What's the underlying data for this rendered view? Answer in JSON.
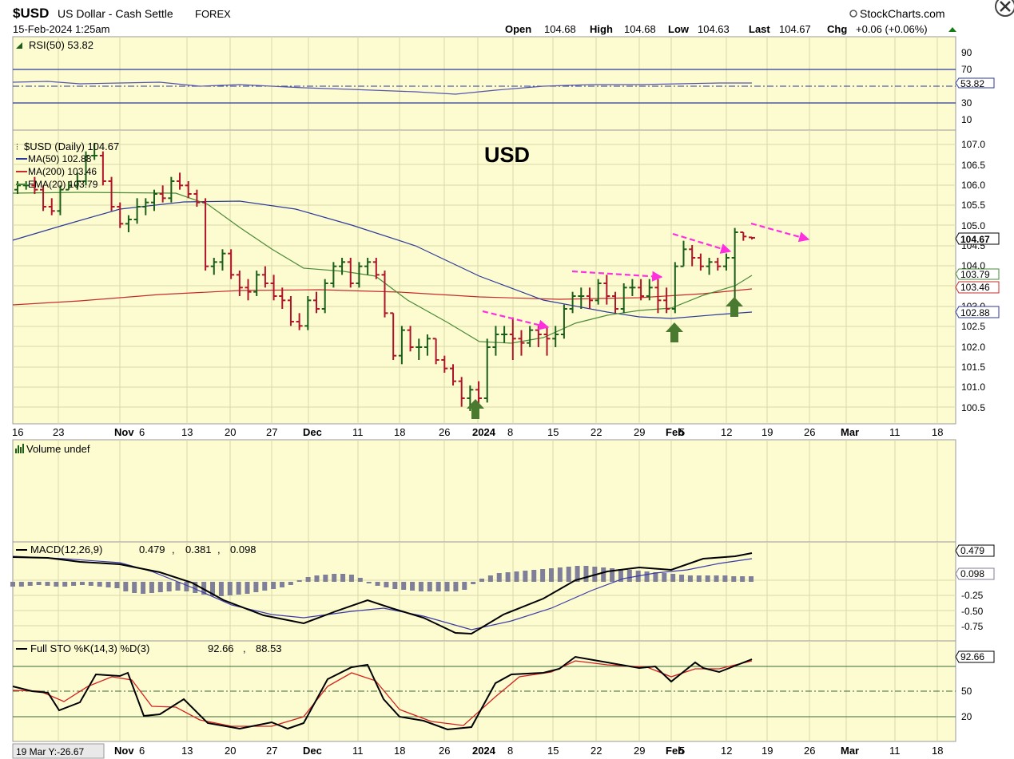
{
  "header": {
    "symbol": "$USD",
    "description": "US Dollar - Cash Settle",
    "exchange": "FOREX",
    "brand": "StockCharts.com",
    "datetime": "15-Feb-2024 1:25am",
    "open_label": "Open",
    "open": "104.68",
    "high_label": "High",
    "high": "104.68",
    "low_label": "Low",
    "low": "104.63",
    "last_label": "Last",
    "last": "104.67",
    "chg_label": "Chg",
    "chg": "+0.06 (+0.06%)"
  },
  "colors": {
    "background": "#fdfbd0",
    "gridline": "#d7d9a8",
    "frame": "#9a9a9a",
    "bar_up": "#1a5e1a",
    "bar_down": "#b0142a",
    "ma50": "#2b3a9a",
    "ma200": "#c82b2b",
    "ema20": "#4a8a3a",
    "annotation_arrow": "#ff2fe0",
    "annotation_text": "#9b59f0",
    "signal_arrow": "#4a7a30",
    "macd_hist": "#7f7f9a",
    "rsi_line": "#5555b0"
  },
  "rsi_panel": {
    "label": "RSI(50) 53.82",
    "current": "53.82",
    "ticks": [
      "90",
      "70",
      "30",
      "10"
    ]
  },
  "price_panel": {
    "legend_symbol": "$USD (Daily) 104.67",
    "legend_ma50": "MA(50) 102.88",
    "legend_ma200": "MA(200) 103.46",
    "legend_ema20": "EMA(20) 103.79",
    "annotation": "USD",
    "tag_last": "104.67",
    "tag_ema20": "103.79",
    "tag_ma200": "103.46",
    "tag_ma50": "102.88",
    "ticks": [
      "107.0",
      "106.5",
      "106.0",
      "105.5",
      "105.0",
      "104.5",
      "104.0",
      "103.0",
      "102.5",
      "102.0",
      "101.5",
      "101.0",
      "100.5"
    ]
  },
  "date_axis": {
    "labels": [
      "16",
      "23",
      "Nov",
      "6",
      "13",
      "20",
      "27",
      "Dec",
      "11",
      "18",
      "26",
      "2024",
      "8",
      "15",
      "22",
      "29",
      "Feb",
      "5",
      "12",
      "19",
      "26",
      "Mar",
      "11",
      "18"
    ],
    "bold": [
      false,
      false,
      true,
      false,
      false,
      false,
      false,
      true,
      false,
      false,
      false,
      true,
      false,
      false,
      false,
      false,
      true,
      false,
      false,
      false,
      false,
      true,
      false,
      false
    ]
  },
  "volume_panel": {
    "label": "Volume undef"
  },
  "macd_panel": {
    "label": "MACD(12,26,9)",
    "macd": "0.479",
    "signal": "0.381",
    "hist": "0.098",
    "tag_macd": "0.479",
    "tag_hist": "0.098",
    "ticks": [
      "-0.25",
      "-0.50",
      "-0.75"
    ]
  },
  "sto_panel": {
    "label": "Full STO %K(14,3) %D(3)",
    "k": "92.66",
    "d": "88.53",
    "tag_k": "92.66",
    "ticks": [
      "50",
      "20"
    ]
  },
  "crosshair_readout": "19 Mar Y:-26.67",
  "chart_data": {
    "type": "bar",
    "title": "$USD US Dollar - Cash Settle FOREX",
    "period": "Daily",
    "ylim": [
      100.3,
      107.2
    ],
    "x_axis": "dates (Oct 2023 – Mar 2024)",
    "ohlc_daily_approx": [
      [
        "2023-10-13",
        105.8,
        106.0,
        105.7,
        105.9
      ],
      [
        "2023-10-16",
        105.9,
        106.0,
        105.8,
        105.9
      ],
      [
        "2023-10-17",
        105.9,
        106.1,
        105.7,
        105.8
      ],
      [
        "2023-10-18",
        105.8,
        105.9,
        105.3,
        105.4
      ],
      [
        "2023-10-19",
        105.4,
        105.6,
        105.2,
        105.3
      ],
      [
        "2023-10-20",
        105.3,
        105.9,
        105.2,
        105.8
      ],
      [
        "2023-10-23",
        105.8,
        106.0,
        105.8,
        105.9
      ],
      [
        "2023-10-24",
        105.9,
        106.2,
        105.8,
        106.0
      ],
      [
        "2023-10-25",
        106.0,
        106.7,
        105.9,
        106.6
      ],
      [
        "2023-10-26",
        106.6,
        106.9,
        106.5,
        106.6
      ],
      [
        "2023-10-27",
        106.6,
        106.7,
        105.9,
        106.0
      ],
      [
        "2023-10-30",
        106.0,
        106.1,
        105.3,
        105.4
      ],
      [
        "2023-10-31",
        105.4,
        105.5,
        104.9,
        105.0
      ],
      [
        "2023-11-01",
        105.0,
        105.2,
        104.8,
        105.1
      ],
      [
        "2023-11-02",
        105.1,
        105.6,
        105.0,
        105.4
      ],
      [
        "2023-11-03",
        105.4,
        105.6,
        105.2,
        105.5
      ],
      [
        "2023-11-06",
        105.5,
        105.8,
        105.3,
        105.7
      ],
      [
        "2023-11-07",
        105.7,
        105.9,
        105.5,
        105.6
      ],
      [
        "2023-11-08",
        105.6,
        106.1,
        105.5,
        106.0
      ],
      [
        "2023-11-09",
        106.0,
        106.2,
        105.8,
        105.9
      ],
      [
        "2023-11-10",
        105.9,
        106.0,
        105.6,
        105.7
      ],
      [
        "2023-11-13",
        105.7,
        105.8,
        105.4,
        105.5
      ],
      [
        "2023-11-14",
        105.5,
        105.6,
        103.9,
        104.0
      ],
      [
        "2023-11-15",
        104.0,
        104.2,
        103.8,
        104.1
      ],
      [
        "2023-11-16",
        104.1,
        104.4,
        103.9,
        104.3
      ],
      [
        "2023-11-17",
        104.3,
        104.4,
        103.7,
        103.8
      ],
      [
        "2023-11-20",
        103.8,
        103.9,
        103.3,
        103.5
      ],
      [
        "2023-11-21",
        103.5,
        103.7,
        103.2,
        103.4
      ],
      [
        "2023-11-22",
        103.4,
        103.9,
        103.3,
        103.8
      ],
      [
        "2023-11-23",
        103.8,
        104.0,
        103.5,
        103.6
      ],
      [
        "2023-11-24",
        103.6,
        103.8,
        103.2,
        103.3
      ],
      [
        "2023-11-27",
        103.3,
        103.5,
        103.0,
        103.2
      ],
      [
        "2023-11-28",
        103.2,
        103.3,
        102.6,
        102.7
      ],
      [
        "2023-11-29",
        102.7,
        102.9,
        102.5,
        102.6
      ],
      [
        "2023-11-30",
        102.6,
        103.3,
        102.5,
        103.2
      ],
      [
        "2023-12-01",
        103.2,
        103.4,
        102.9,
        103.0
      ],
      [
        "2023-12-04",
        103.0,
        103.7,
        102.9,
        103.6
      ],
      [
        "2023-12-05",
        103.6,
        104.1,
        103.5,
        104.0
      ],
      [
        "2023-12-06",
        104.0,
        104.2,
        103.8,
        104.1
      ],
      [
        "2023-12-07",
        104.1,
        104.2,
        103.5,
        103.6
      ],
      [
        "2023-12-08",
        103.6,
        104.1,
        103.5,
        104.0
      ],
      [
        "2023-12-11",
        104.0,
        104.2,
        103.8,
        104.1
      ],
      [
        "2023-12-12",
        104.1,
        104.2,
        103.7,
        103.8
      ],
      [
        "2023-12-13",
        103.8,
        103.9,
        102.8,
        102.9
      ],
      [
        "2023-12-14",
        102.9,
        102.9,
        101.8,
        101.9
      ],
      [
        "2023-12-15",
        101.9,
        102.6,
        101.7,
        102.5
      ],
      [
        "2023-12-18",
        102.5,
        102.6,
        102.0,
        102.1
      ],
      [
        "2023-12-19",
        102.1,
        102.3,
        101.8,
        102.1
      ],
      [
        "2023-12-20",
        102.1,
        102.4,
        101.9,
        102.3
      ],
      [
        "2023-12-21",
        102.3,
        102.3,
        101.7,
        101.8
      ],
      [
        "2023-12-22",
        101.8,
        101.9,
        101.5,
        101.6
      ],
      [
        "2023-12-26",
        101.6,
        101.7,
        101.2,
        101.3
      ],
      [
        "2023-12-27",
        101.3,
        101.4,
        100.7,
        100.9
      ],
      [
        "2023-12-28",
        100.9,
        101.2,
        100.6,
        101.1
      ],
      [
        "2023-12-29",
        101.1,
        101.3,
        100.7,
        100.9
      ],
      [
        "2024-01-02",
        100.9,
        102.3,
        100.8,
        102.1
      ],
      [
        "2024-01-03",
        102.1,
        102.6,
        101.9,
        102.4
      ],
      [
        "2024-01-04",
        102.4,
        102.6,
        102.2,
        102.4
      ],
      [
        "2024-01-05",
        102.4,
        102.8,
        101.8,
        102.3
      ],
      [
        "2024-01-08",
        102.3,
        102.5,
        101.9,
        102.2
      ],
      [
        "2024-01-09",
        102.2,
        102.6,
        102.1,
        102.5
      ],
      [
        "2024-01-10",
        102.5,
        102.6,
        102.1,
        102.4
      ],
      [
        "2024-01-11",
        102.4,
        102.6,
        101.9,
        102.3
      ],
      [
        "2024-01-12",
        102.3,
        102.6,
        102.1,
        102.4
      ],
      [
        "2024-01-16",
        102.4,
        103.1,
        102.3,
        103.0
      ],
      [
        "2024-01-17",
        103.0,
        103.4,
        102.9,
        103.3
      ],
      [
        "2024-01-18",
        103.3,
        103.5,
        103.0,
        103.3
      ],
      [
        "2024-01-19",
        103.3,
        103.5,
        103.0,
        103.2
      ],
      [
        "2024-01-22",
        103.2,
        103.7,
        103.1,
        103.6
      ],
      [
        "2024-01-23",
        103.6,
        103.8,
        103.1,
        103.3
      ],
      [
        "2024-01-24",
        103.3,
        103.4,
        102.9,
        103.0
      ],
      [
        "2024-01-25",
        103.0,
        103.6,
        102.9,
        103.5
      ],
      [
        "2024-01-26",
        103.5,
        103.7,
        103.3,
        103.5
      ],
      [
        "2024-01-29",
        103.5,
        103.7,
        103.2,
        103.3
      ],
      [
        "2024-01-30",
        103.3,
        103.7,
        103.2,
        103.5
      ],
      [
        "2024-01-31",
        103.5,
        103.7,
        102.9,
        103.2
      ],
      [
        "2024-02-01",
        103.2,
        103.5,
        102.9,
        103.0
      ],
      [
        "2024-02-02",
        103.0,
        104.1,
        102.9,
        104.0
      ],
      [
        "2024-02-05",
        104.0,
        104.6,
        104.0,
        104.4
      ],
      [
        "2024-02-06",
        104.4,
        104.5,
        104.0,
        104.2
      ],
      [
        "2024-02-07",
        104.2,
        104.3,
        103.9,
        104.0
      ],
      [
        "2024-02-08",
        104.0,
        104.2,
        103.8,
        104.1
      ],
      [
        "2024-02-09",
        104.1,
        104.2,
        103.9,
        104.0
      ],
      [
        "2024-02-12",
        104.0,
        104.3,
        103.9,
        104.2
      ],
      [
        "2024-02-13",
        104.2,
        104.9,
        103.1,
        104.8
      ],
      [
        "2024-02-14",
        104.8,
        104.8,
        104.6,
        104.7
      ],
      [
        "2024-02-15",
        104.68,
        104.68,
        104.63,
        104.67
      ]
    ]
  }
}
